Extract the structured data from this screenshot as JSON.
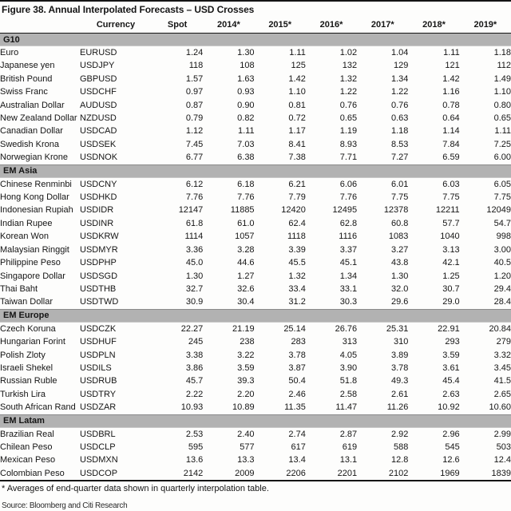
{
  "figure": {
    "title": "Figure 38. Annual Interpolated Forecasts – USD Crosses",
    "footnote": "* Averages of end-quarter data shown in quarterly interpolation table.",
    "source": "Source: Bloomberg and Citi Research"
  },
  "table": {
    "columns": [
      "",
      "Currency",
      "Spot",
      "2014*",
      "2015*",
      "2016*",
      "2017*",
      "2018*",
      "2019*"
    ],
    "sections": [
      {
        "label": "G10",
        "rows": [
          {
            "name": "Euro",
            "code": "EURUSD",
            "values": [
              "1.24",
              "1.30",
              "1.11",
              "1.02",
              "1.04",
              "1.11",
              "1.18"
            ]
          },
          {
            "name": "Japanese yen",
            "code": "USDJPY",
            "values": [
              "118",
              "108",
              "125",
              "132",
              "129",
              "121",
              "112"
            ]
          },
          {
            "name": "British Pound",
            "code": "GBPUSD",
            "values": [
              "1.57",
              "1.63",
              "1.42",
              "1.32",
              "1.34",
              "1.42",
              "1.49"
            ]
          },
          {
            "name": "Swiss Franc",
            "code": "USDCHF",
            "values": [
              "0.97",
              "0.93",
              "1.10",
              "1.22",
              "1.22",
              "1.16",
              "1.10"
            ]
          },
          {
            "name": "Australian Dollar",
            "code": "AUDUSD",
            "values": [
              "0.87",
              "0.90",
              "0.81",
              "0.76",
              "0.76",
              "0.78",
              "0.80"
            ]
          },
          {
            "name": "New Zealand Dollar",
            "code": "NZDUSD",
            "values": [
              "0.79",
              "0.82",
              "0.72",
              "0.65",
              "0.63",
              "0.64",
              "0.65"
            ]
          },
          {
            "name": "Canadian Dollar",
            "code": "USDCAD",
            "values": [
              "1.12",
              "1.11",
              "1.17",
              "1.19",
              "1.18",
              "1.14",
              "1.11"
            ]
          },
          {
            "name": "Swedish Krona",
            "code": "USDSEK",
            "values": [
              "7.45",
              "7.03",
              "8.41",
              "8.93",
              "8.53",
              "7.84",
              "7.25"
            ]
          },
          {
            "name": "Norwegian Krone",
            "code": "USDNOK",
            "values": [
              "6.77",
              "6.38",
              "7.38",
              "7.71",
              "7.27",
              "6.59",
              "6.00"
            ]
          }
        ]
      },
      {
        "label": "EM Asia",
        "rows": [
          {
            "name": "Chinese Renminbi",
            "code": "USDCNY",
            "values": [
              "6.12",
              "6.18",
              "6.21",
              "6.06",
              "6.01",
              "6.03",
              "6.05"
            ]
          },
          {
            "name": "Hong Kong Dollar",
            "code": "USDHKD",
            "values": [
              "7.76",
              "7.76",
              "7.79",
              "7.76",
              "7.75",
              "7.75",
              "7.75"
            ]
          },
          {
            "name": "Indonesian Rupiah",
            "code": "USDIDR",
            "values": [
              "12147",
              "11885",
              "12420",
              "12495",
              "12378",
              "12211",
              "12049"
            ]
          },
          {
            "name": "Indian Rupee",
            "code": "USDINR",
            "values": [
              "61.8",
              "61.0",
              "62.4",
              "62.8",
              "60.8",
              "57.7",
              "54.7"
            ]
          },
          {
            "name": "Korean Won",
            "code": "USDKRW",
            "values": [
              "1114",
              "1057",
              "1118",
              "1116",
              "1083",
              "1040",
              "998"
            ]
          },
          {
            "name": "Malaysian Ringgit",
            "code": "USDMYR",
            "values": [
              "3.36",
              "3.28",
              "3.39",
              "3.37",
              "3.27",
              "3.13",
              "3.00"
            ]
          },
          {
            "name": "Philippine Peso",
            "code": "USDPHP",
            "values": [
              "45.0",
              "44.6",
              "45.5",
              "45.1",
              "43.8",
              "42.1",
              "40.5"
            ]
          },
          {
            "name": "Singapore Dollar",
            "code": "USDSGD",
            "values": [
              "1.30",
              "1.27",
              "1.32",
              "1.34",
              "1.30",
              "1.25",
              "1.20"
            ]
          },
          {
            "name": "Thai Baht",
            "code": "USDTHB",
            "values": [
              "32.7",
              "32.6",
              "33.4",
              "33.1",
              "32.0",
              "30.7",
              "29.4"
            ]
          },
          {
            "name": "Taiwan Dollar",
            "code": "USDTWD",
            "values": [
              "30.9",
              "30.4",
              "31.2",
              "30.3",
              "29.6",
              "29.0",
              "28.4"
            ]
          }
        ]
      },
      {
        "label": "EM Europe",
        "rows": [
          {
            "name": "Czech Koruna",
            "code": "USDCZK",
            "values": [
              "22.27",
              "21.19",
              "25.14",
              "26.76",
              "25.31",
              "22.91",
              "20.84"
            ]
          },
          {
            "name": "Hungarian Forint",
            "code": "USDHUF",
            "values": [
              "245",
              "238",
              "283",
              "313",
              "310",
              "293",
              "279"
            ]
          },
          {
            "name": "Polish Zloty",
            "code": "USDPLN",
            "values": [
              "3.38",
              "3.22",
              "3.78",
              "4.05",
              "3.89",
              "3.59",
              "3.32"
            ]
          },
          {
            "name": "Israeli Shekel",
            "code": "USDILS",
            "values": [
              "3.86",
              "3.59",
              "3.87",
              "3.90",
              "3.78",
              "3.61",
              "3.45"
            ]
          },
          {
            "name": "Russian Ruble",
            "code": "USDRUB",
            "values": [
              "45.7",
              "39.3",
              "50.4",
              "51.8",
              "49.3",
              "45.4",
              "41.5"
            ]
          },
          {
            "name": "Turkish Lira",
            "code": "USDTRY",
            "values": [
              "2.22",
              "2.20",
              "2.46",
              "2.58",
              "2.61",
              "2.63",
              "2.65"
            ]
          },
          {
            "name": "South African Rand",
            "code": "USDZAR",
            "values": [
              "10.93",
              "10.89",
              "11.35",
              "11.47",
              "11.26",
              "10.92",
              "10.60"
            ]
          }
        ]
      },
      {
        "label": "EM Latam",
        "rows": [
          {
            "name": "Brazilian Real",
            "code": "USDBRL",
            "values": [
              "2.53",
              "2.40",
              "2.74",
              "2.87",
              "2.92",
              "2.96",
              "2.99"
            ]
          },
          {
            "name": "Chilean Peso",
            "code": "USDCLP",
            "values": [
              "595",
              "577",
              "617",
              "619",
              "588",
              "545",
              "503"
            ]
          },
          {
            "name": "Mexican Peso",
            "code": "USDMXN",
            "values": [
              "13.6",
              "13.3",
              "13.4",
              "13.1",
              "12.8",
              "12.6",
              "12.4"
            ]
          },
          {
            "name": "Colombian Peso",
            "code": "USDCOP",
            "values": [
              "2142",
              "2009",
              "2206",
              "2201",
              "2102",
              "1969",
              "1839"
            ]
          }
        ]
      }
    ]
  }
}
